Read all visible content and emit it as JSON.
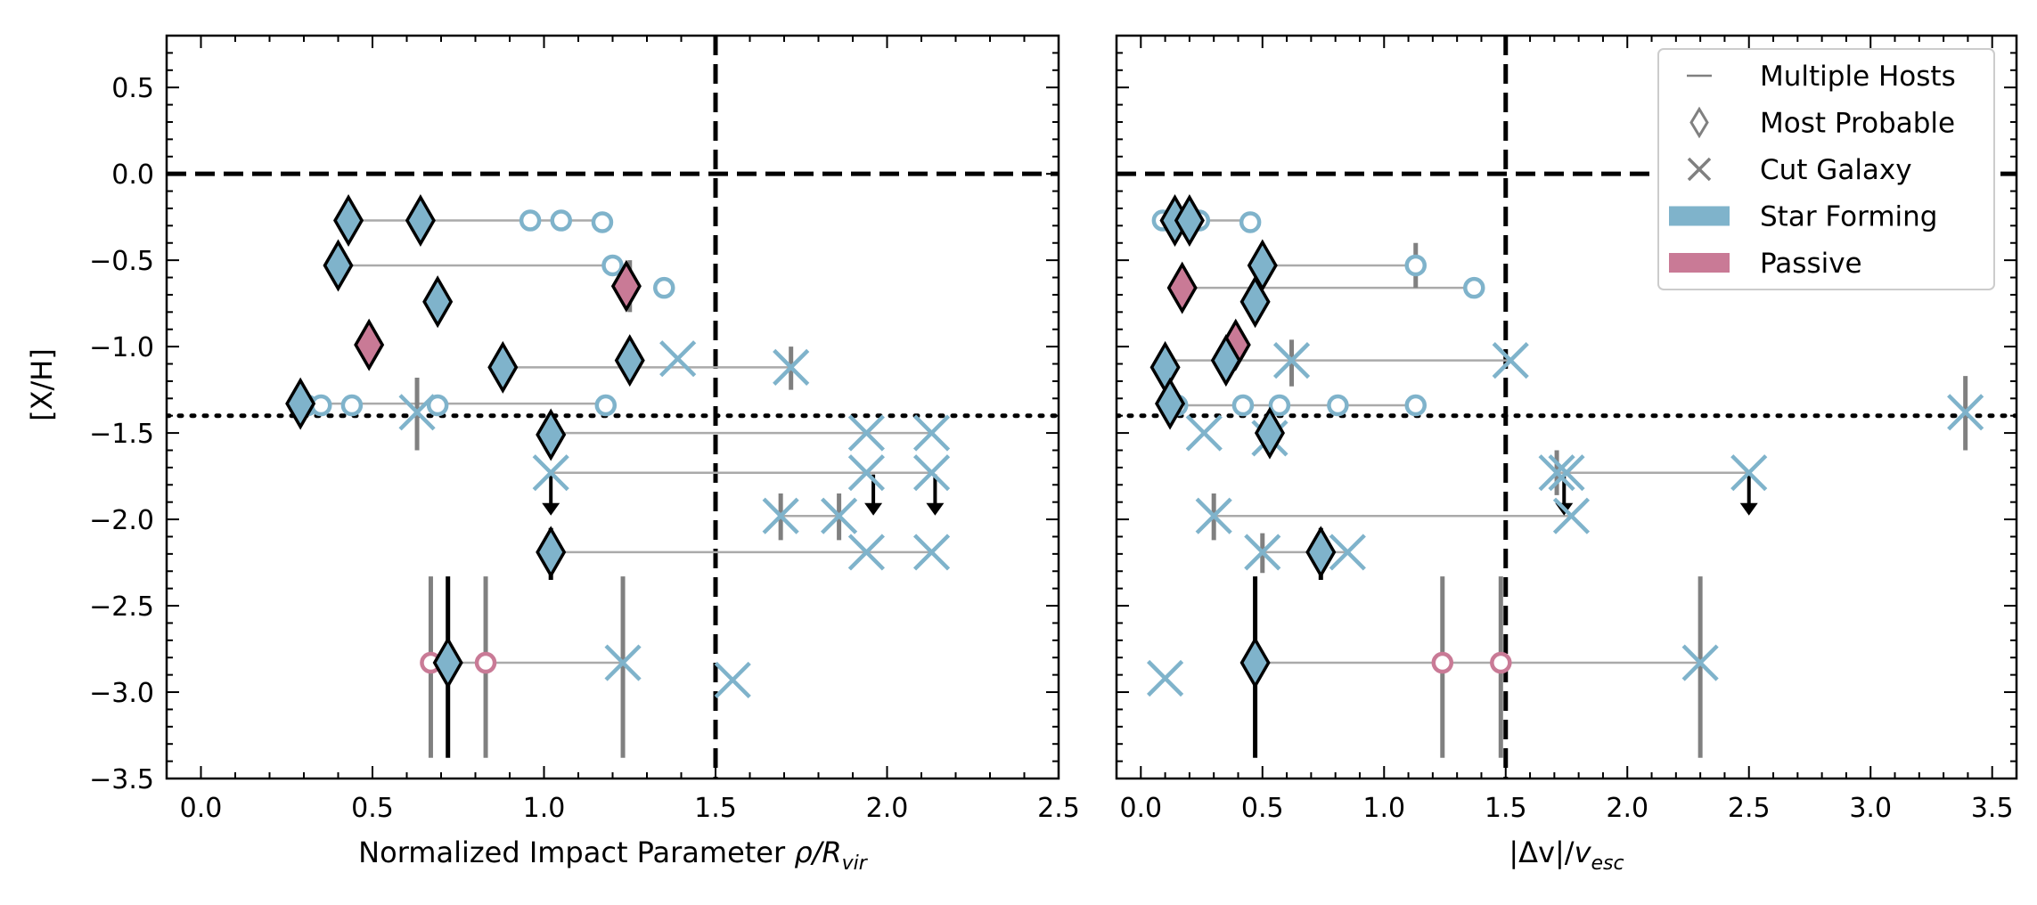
{
  "ylabel": "[X/H]",
  "colors": {
    "star_forming": "#7fb3cb",
    "passive": "#c97a96",
    "host_line": "#aaaaaa",
    "errorbar": "#808080",
    "axis": "#000000"
  },
  "legend": {
    "placement": "upper-right of right panel",
    "entries": [
      {
        "label": "Multiple Hosts",
        "kind": "line"
      },
      {
        "label": "Most Probable",
        "kind": "diamond"
      },
      {
        "label": "Cut Galaxy",
        "kind": "x"
      },
      {
        "label": "Star Forming",
        "kind": "patch-sf"
      },
      {
        "label": "Passive",
        "kind": "patch-passive"
      }
    ]
  },
  "chart_data": [
    {
      "type": "scatter",
      "xlabel": "Normalized Impact Parameter",
      "xlabel_math": "ρ/R",
      "xlabel_sub": "vir",
      "xlim": [
        -0.1,
        2.5
      ],
      "ylim": [
        -3.5,
        0.8
      ],
      "xticks": [
        "0.0",
        "0.5",
        "1.0",
        "1.5",
        "2.0",
        "2.5"
      ],
      "yticks": [
        "0.5",
        "0.0",
        "−0.5",
        "−1.0",
        "−1.5",
        "−2.0",
        "−2.5",
        "−3.0",
        "−3.5"
      ],
      "vline": 1.5,
      "hline_dashed": 0.0,
      "hline_dotted": -1.4,
      "host_lines": [
        {
          "y": -0.27,
          "x0": 0.43,
          "x1": 1.17
        },
        {
          "y": -0.53,
          "x0": 0.4,
          "x1": 1.2
        },
        {
          "y": -1.12,
          "x0": 0.88,
          "x1": 1.72
        },
        {
          "y": -1.33,
          "x0": 0.29,
          "x1": 1.18
        },
        {
          "y": -1.5,
          "x0": 1.02,
          "x1": 2.13
        },
        {
          "y": -1.73,
          "x0": 1.02,
          "x1": 2.13
        },
        {
          "y": -1.98,
          "x0": 1.69,
          "x1": 1.86
        },
        {
          "y": -2.19,
          "x0": 1.02,
          "x1": 2.13
        },
        {
          "y": -2.83,
          "x0": 0.67,
          "x1": 1.23
        }
      ],
      "diamonds": [
        {
          "x": 0.43,
          "y": -0.27,
          "c": "sf"
        },
        {
          "x": 0.64,
          "y": -0.27,
          "c": "sf"
        },
        {
          "x": 0.4,
          "y": -0.53,
          "c": "sf"
        },
        {
          "x": 1.24,
          "y": -0.65,
          "c": "passive"
        },
        {
          "x": 0.69,
          "y": -0.74,
          "c": "sf"
        },
        {
          "x": 0.49,
          "y": -0.99,
          "c": "passive"
        },
        {
          "x": 0.88,
          "y": -1.12,
          "c": "sf"
        },
        {
          "x": 1.25,
          "y": -1.08,
          "c": "sf"
        },
        {
          "x": 0.29,
          "y": -1.33,
          "c": "sf"
        },
        {
          "x": 1.02,
          "y": -1.51,
          "c": "sf"
        },
        {
          "x": 1.02,
          "y": -2.19,
          "c": "sf"
        },
        {
          "x": 0.72,
          "y": -2.83,
          "c": "sf"
        }
      ],
      "circles": [
        {
          "x": 0.96,
          "y": -0.27,
          "c": "sf"
        },
        {
          "x": 1.05,
          "y": -0.27,
          "c": "sf"
        },
        {
          "x": 1.17,
          "y": -0.28,
          "c": "sf"
        },
        {
          "x": 1.2,
          "y": -0.53,
          "c": "sf"
        },
        {
          "x": 1.35,
          "y": -0.66,
          "c": "sf"
        },
        {
          "x": 0.31,
          "y": -1.34,
          "c": "sf"
        },
        {
          "x": 0.35,
          "y": -1.34,
          "c": "sf"
        },
        {
          "x": 0.44,
          "y": -1.34,
          "c": "sf"
        },
        {
          "x": 0.69,
          "y": -1.34,
          "c": "sf"
        },
        {
          "x": 1.18,
          "y": -1.34,
          "c": "sf"
        },
        {
          "x": 0.67,
          "y": -2.83,
          "c": "passive"
        },
        {
          "x": 0.83,
          "y": -2.83,
          "c": "passive"
        }
      ],
      "crosses": [
        {
          "x": 1.39,
          "y": -1.07,
          "c": "sf"
        },
        {
          "x": 1.72,
          "y": -1.12,
          "c": "sf"
        },
        {
          "x": 0.63,
          "y": -1.38,
          "c": "sf"
        },
        {
          "x": 1.94,
          "y": -1.5,
          "c": "sf"
        },
        {
          "x": 2.13,
          "y": -1.5,
          "c": "sf"
        },
        {
          "x": 1.02,
          "y": -1.73,
          "c": "sf"
        },
        {
          "x": 1.94,
          "y": -1.73,
          "c": "sf"
        },
        {
          "x": 2.13,
          "y": -1.73,
          "c": "sf"
        },
        {
          "x": 1.69,
          "y": -1.98,
          "c": "sf"
        },
        {
          "x": 1.86,
          "y": -1.98,
          "c": "sf"
        },
        {
          "x": 1.94,
          "y": -2.19,
          "c": "sf"
        },
        {
          "x": 2.13,
          "y": -2.19,
          "c": "sf"
        },
        {
          "x": 1.23,
          "y": -2.83,
          "c": "sf"
        },
        {
          "x": 1.55,
          "y": -2.93,
          "c": "sf"
        }
      ],
      "errorbars": [
        {
          "x": 0.64,
          "y0": -0.14,
          "y1": -0.4,
          "color": "gray"
        },
        {
          "x": 1.25,
          "y0": -0.5,
          "y1": -0.8,
          "color": "gray"
        },
        {
          "x": 1.72,
          "y0": -1.0,
          "y1": -1.25,
          "color": "gray"
        },
        {
          "x": 0.63,
          "y0": -1.18,
          "y1": -1.6,
          "color": "gray"
        },
        {
          "x": 1.69,
          "y0": -1.85,
          "y1": -2.12,
          "color": "gray"
        },
        {
          "x": 1.86,
          "y0": -1.85,
          "y1": -2.12,
          "color": "gray"
        },
        {
          "x": 1.02,
          "y0": -2.05,
          "y1": -2.35,
          "color": "black"
        },
        {
          "x": 0.67,
          "y0": -2.33,
          "y1": -3.38,
          "color": "gray"
        },
        {
          "x": 0.72,
          "y0": -2.33,
          "y1": -3.38,
          "color": "black"
        },
        {
          "x": 0.83,
          "y0": -2.33,
          "y1": -3.38,
          "color": "gray"
        },
        {
          "x": 1.23,
          "y0": -2.33,
          "y1": -3.38,
          "color": "gray"
        }
      ],
      "upper_limits": [
        {
          "x": 1.02,
          "y": -1.73
        },
        {
          "x": 1.96,
          "y": -1.73
        },
        {
          "x": 2.14,
          "y": -1.73
        }
      ]
    },
    {
      "type": "scatter",
      "xlabel": "|Δv|/",
      "xlabel_math": "v",
      "xlabel_sub": "esc",
      "xlim": [
        -0.1,
        3.6
      ],
      "ylim": [
        -3.5,
        0.8
      ],
      "xticks": [
        "0.0",
        "0.5",
        "1.0",
        "1.5",
        "2.0",
        "2.5",
        "3.0",
        "3.5"
      ],
      "vline": 1.5,
      "hline_dashed": 0.0,
      "hline_dotted": -1.4,
      "host_lines": [
        {
          "y": -0.27,
          "x0": 0.1,
          "x1": 0.45
        },
        {
          "y": -0.53,
          "x0": 0.5,
          "x1": 1.13
        },
        {
          "y": -0.66,
          "x0": 0.17,
          "x1": 1.37
        },
        {
          "y": -1.08,
          "x0": 0.1,
          "x1": 1.52
        },
        {
          "y": -1.34,
          "x0": 0.1,
          "x1": 1.13
        },
        {
          "y": -1.73,
          "x0": 1.71,
          "x1": 2.5
        },
        {
          "y": -1.98,
          "x0": 0.3,
          "x1": 1.77
        },
        {
          "y": -2.19,
          "x0": 0.5,
          "x1": 0.85
        },
        {
          "y": -2.83,
          "x0": 0.47,
          "x1": 2.3
        }
      ],
      "diamonds": [
        {
          "x": 0.14,
          "y": -0.27,
          "c": "sf"
        },
        {
          "x": 0.2,
          "y": -0.27,
          "c": "sf"
        },
        {
          "x": 0.5,
          "y": -0.53,
          "c": "sf"
        },
        {
          "x": 0.17,
          "y": -0.66,
          "c": "passive"
        },
        {
          "x": 0.47,
          "y": -0.74,
          "c": "sf"
        },
        {
          "x": 0.39,
          "y": -0.99,
          "c": "passive"
        },
        {
          "x": 0.35,
          "y": -1.08,
          "c": "sf"
        },
        {
          "x": 0.1,
          "y": -1.12,
          "c": "sf"
        },
        {
          "x": 0.12,
          "y": -1.33,
          "c": "sf"
        },
        {
          "x": 0.53,
          "y": -1.5,
          "c": "sf"
        },
        {
          "x": 0.74,
          "y": -2.19,
          "c": "sf"
        },
        {
          "x": 0.47,
          "y": -2.83,
          "c": "sf"
        }
      ],
      "circles": [
        {
          "x": 0.09,
          "y": -0.27,
          "c": "sf"
        },
        {
          "x": 0.24,
          "y": -0.27,
          "c": "sf"
        },
        {
          "x": 0.45,
          "y": -0.28,
          "c": "sf"
        },
        {
          "x": 1.13,
          "y": -0.53,
          "c": "sf"
        },
        {
          "x": 1.37,
          "y": -0.66,
          "c": "sf"
        },
        {
          "x": 0.15,
          "y": -1.34,
          "c": "sf"
        },
        {
          "x": 0.42,
          "y": -1.34,
          "c": "sf"
        },
        {
          "x": 0.57,
          "y": -1.34,
          "c": "sf"
        },
        {
          "x": 0.81,
          "y": -1.34,
          "c": "sf"
        },
        {
          "x": 1.13,
          "y": -1.34,
          "c": "sf"
        },
        {
          "x": 1.24,
          "y": -2.83,
          "c": "passive"
        },
        {
          "x": 1.48,
          "y": -2.83,
          "c": "passive"
        }
      ],
      "crosses": [
        {
          "x": 0.62,
          "y": -1.08,
          "c": "sf"
        },
        {
          "x": 1.52,
          "y": -1.08,
          "c": "sf"
        },
        {
          "x": 0.26,
          "y": -1.5,
          "c": "sf"
        },
        {
          "x": 0.53,
          "y": -1.53,
          "c": "sf"
        },
        {
          "x": 3.39,
          "y": -1.38,
          "c": "sf"
        },
        {
          "x": 1.71,
          "y": -1.73,
          "c": "sf"
        },
        {
          "x": 1.75,
          "y": -1.73,
          "c": "sf"
        },
        {
          "x": 2.5,
          "y": -1.73,
          "c": "sf"
        },
        {
          "x": 0.3,
          "y": -1.98,
          "c": "sf"
        },
        {
          "x": 1.77,
          "y": -1.98,
          "c": "sf"
        },
        {
          "x": 0.5,
          "y": -2.19,
          "c": "sf"
        },
        {
          "x": 0.85,
          "y": -2.19,
          "c": "sf"
        },
        {
          "x": 2.3,
          "y": -2.83,
          "c": "sf"
        },
        {
          "x": 0.1,
          "y": -2.92,
          "c": "sf"
        }
      ],
      "errorbars": [
        {
          "x": 0.14,
          "y0": -0.14,
          "y1": -0.4,
          "color": "gray"
        },
        {
          "x": 1.13,
          "y0": -0.4,
          "y1": -0.66,
          "color": "gray"
        },
        {
          "x": 0.62,
          "y0": -0.96,
          "y1": -1.23,
          "color": "gray"
        },
        {
          "x": 3.39,
          "y0": -1.17,
          "y1": -1.6,
          "color": "gray"
        },
        {
          "x": 0.3,
          "y0": -1.85,
          "y1": -2.12,
          "color": "gray"
        },
        {
          "x": 1.71,
          "y0": -1.6,
          "y1": -1.86,
          "color": "gray"
        },
        {
          "x": 0.5,
          "y0": -2.08,
          "y1": -2.31,
          "color": "gray"
        },
        {
          "x": 0.74,
          "y0": -2.05,
          "y1": -2.35,
          "color": "black"
        },
        {
          "x": 0.47,
          "y0": -2.33,
          "y1": -3.38,
          "color": "black"
        },
        {
          "x": 1.24,
          "y0": -2.33,
          "y1": -3.38,
          "color": "gray"
        },
        {
          "x": 1.48,
          "y0": -2.33,
          "y1": -3.38,
          "color": "gray"
        },
        {
          "x": 2.3,
          "y0": -2.33,
          "y1": -3.38,
          "color": "gray"
        }
      ],
      "upper_limits": [
        {
          "x": 1.74,
          "y": -1.73
        },
        {
          "x": 2.5,
          "y": -1.73
        }
      ]
    }
  ]
}
